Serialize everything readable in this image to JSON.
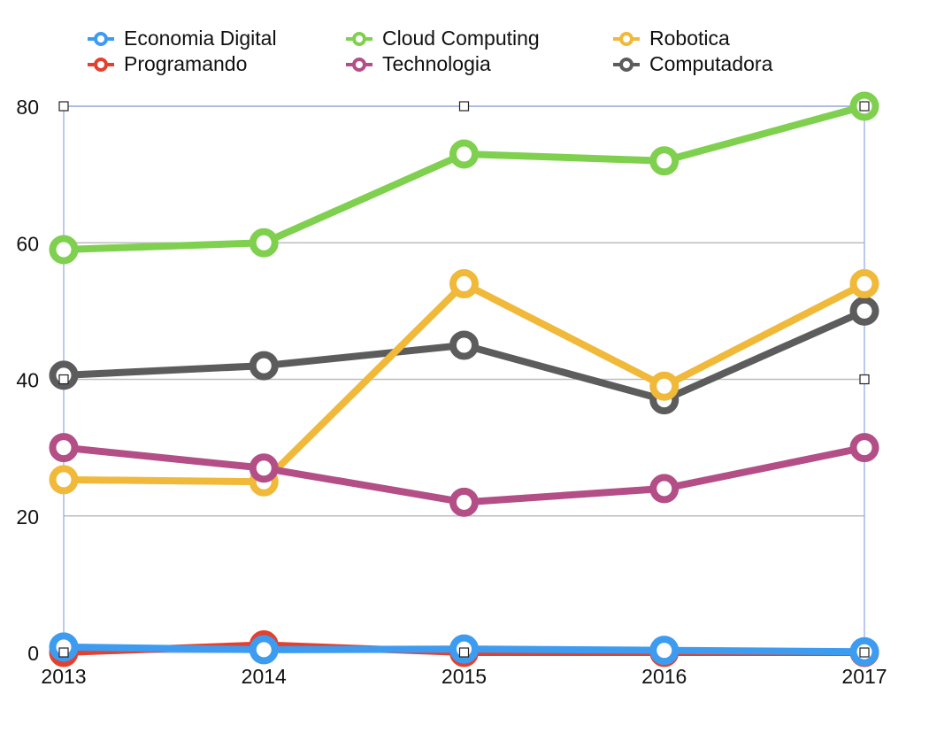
{
  "chart_data": {
    "type": "line",
    "categories": [
      "2013",
      "2014",
      "2015",
      "2016",
      "2017"
    ],
    "ylim": [
      0,
      80
    ],
    "yticks": [
      0,
      20,
      40,
      60,
      80
    ],
    "grid": true,
    "legend_placement": "top",
    "series": [
      {
        "name": "Economia Digital",
        "color": "#3d9bf0",
        "values": [
          0.8,
          0.4,
          0.5,
          0.3,
          0.1
        ]
      },
      {
        "name": "Programando",
        "color": "#e5402e",
        "values": [
          0.0,
          1.1,
          0.0,
          0.0,
          0.0
        ]
      },
      {
        "name": "Cloud Computing",
        "color": "#7fd04f",
        "values": [
          59,
          60,
          73,
          72,
          80
        ]
      },
      {
        "name": "Technologia",
        "color": "#b34f86",
        "values": [
          30,
          27,
          22,
          24,
          30
        ]
      },
      {
        "name": "Robotica",
        "color": "#f0b93a",
        "values": [
          25.3,
          25,
          54,
          39,
          54
        ]
      },
      {
        "name": "Computadora",
        "color": "#5c5c5c",
        "values": [
          40.6,
          42,
          45,
          37,
          50
        ]
      }
    ],
    "draw_order": [
      "Cloud Computing",
      "Computadora",
      "Robotica",
      "Technologia",
      "Programando",
      "Economia Digital"
    ]
  }
}
